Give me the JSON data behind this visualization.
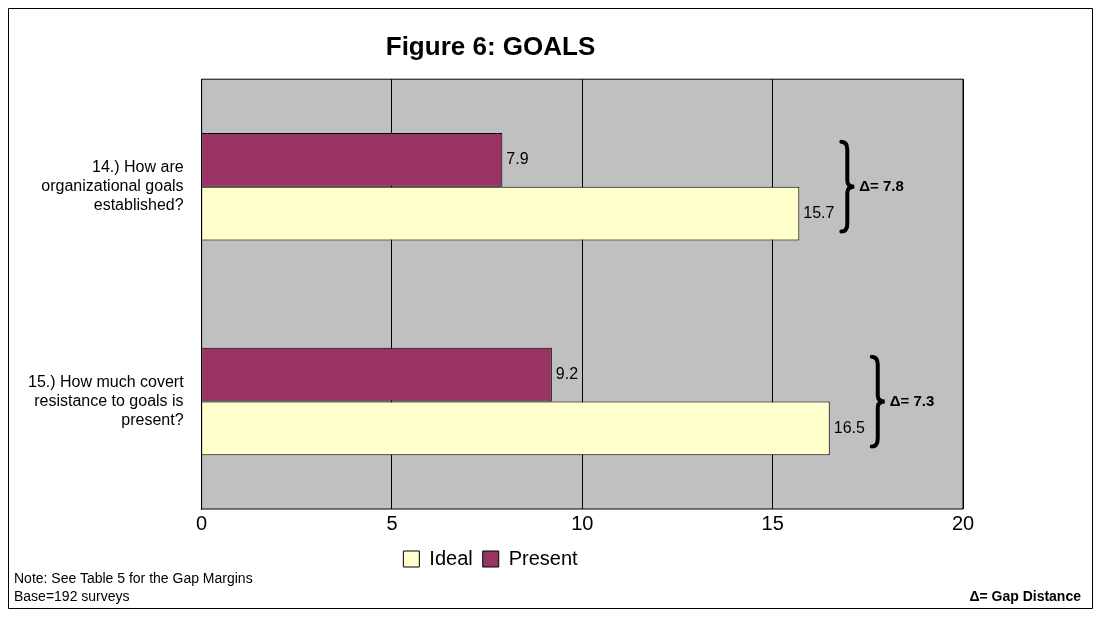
{
  "chart_data": {
    "type": "bar",
    "orientation": "horizontal",
    "title": "Figure 6: GOALS",
    "categories": [
      "14.) How are organizational goals established?",
      "15.) How much covert resistance to goals is present?"
    ],
    "series": [
      {
        "name": "Present",
        "color": "#993366",
        "values": [
          7.9,
          9.2
        ]
      },
      {
        "name": "Ideal",
        "color": "#ffffcc",
        "values": [
          15.7,
          16.5
        ]
      }
    ],
    "xlim": [
      0,
      20
    ],
    "xticks": [
      0,
      5,
      10,
      15,
      20
    ],
    "grid": "x",
    "legend": "bottom",
    "data_labels": true,
    "annotations": [
      "Δ= 7.8",
      "Δ= 7.3",
      "Note: See Table 5 for the Gap Margins",
      "Base=192 surveys",
      "Δ= Gap Distance"
    ]
  }
}
